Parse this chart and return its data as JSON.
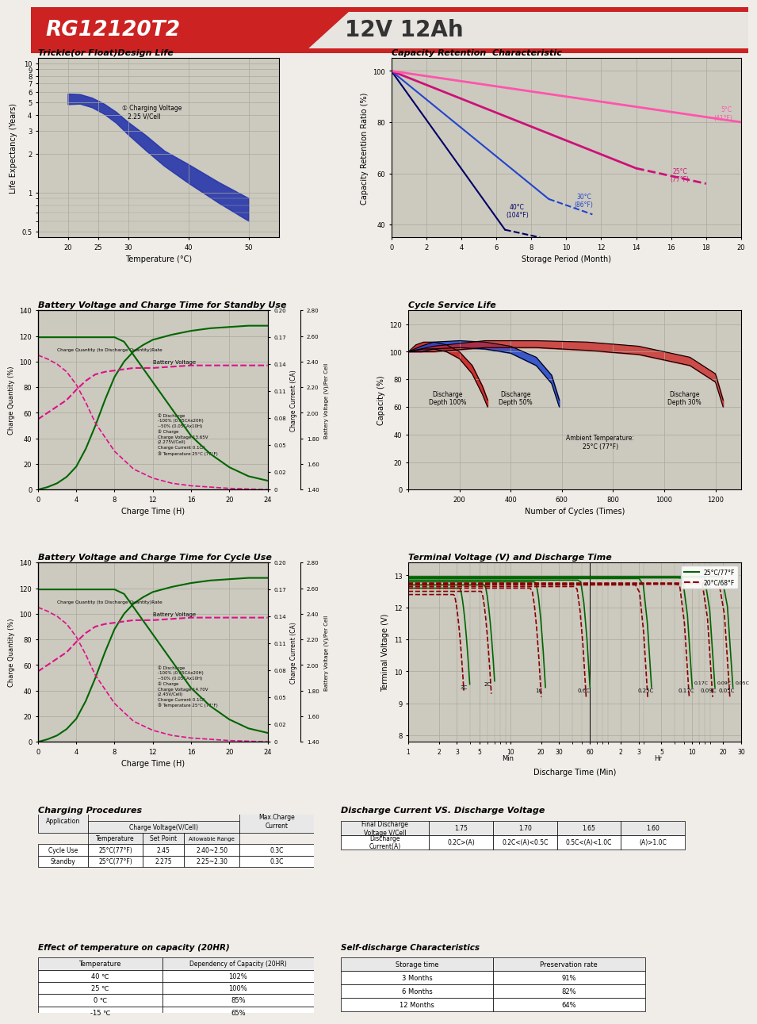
{
  "title_model": "RG12120T2",
  "title_spec": "12V 12Ah",
  "bg_color": "#f0ede8",
  "header_red": "#cc2222",
  "grid_bg": "#ccc9bf",
  "panel_border": "#888880",
  "sec1_title": "Trickle(or Float)Design Life",
  "sec2_title": "Capacity Retention  Characteristic",
  "sec3_title": "Battery Voltage and Charge Time for Standby Use",
  "sec4_title": "Cycle Service Life",
  "sec5_title": "Battery Voltage and Charge Time for Cycle Use",
  "sec6_title": "Terminal Voltage (V) and Discharge Time",
  "sec7_title": "Charging Procedures",
  "sec8_title": "Discharge Current VS. Discharge Voltage",
  "sec9_title": "Effect of temperature on capacity (20HR)",
  "sec10_title": "Self-discharge Characteristics",
  "charge_standby_note": "① Discharge\n-100% (0.05CAx20H)\n--50% (0.05CAx10H)\n② Charge\nCharge Voltage 13.65V\n(2.275V/Cell)\nCharge Current 0.1CA\n③ Temperature 25°C (77°F)",
  "charge_cycle_note": "① Discharge\n-100% (0.05CAx20H)\n--50% (0.05CAx10H)\n② Charge\nCharge Voltage 14.70V\n(2.45V/Cell)\nCharge Current 0.1CA\n③ Temperature 25°C (77°F)",
  "table7_data": [
    [
      "Cycle Use",
      "25°C(77°F)",
      "2.45",
      "2.40~2.50",
      "0.3C"
    ],
    [
      "Standby",
      "25°C(77°F)",
      "2.275",
      "2.25~2.30",
      "0.3C"
    ]
  ],
  "table8_data": [
    [
      "Final Discharge\nVoltage V/Cell",
      "1.75",
      "1.70",
      "1.65",
      "1.60"
    ],
    [
      "Discharge\nCurrent(A)",
      "0.2C>(A)",
      "0.2C<(A)<0.5C",
      "0.5C<(A)<1.0C",
      "(A)>1.0C"
    ]
  ],
  "table9_data": [
    [
      "40 ℃",
      "102%"
    ],
    [
      "25 ℃",
      "100%"
    ],
    [
      "0 ℃",
      "85%"
    ],
    [
      "-15 ℃",
      "65%"
    ]
  ],
  "table10_data": [
    [
      "3 Months",
      "91%"
    ],
    [
      "6 Months",
      "82%"
    ],
    [
      "12 Months",
      "64%"
    ]
  ]
}
